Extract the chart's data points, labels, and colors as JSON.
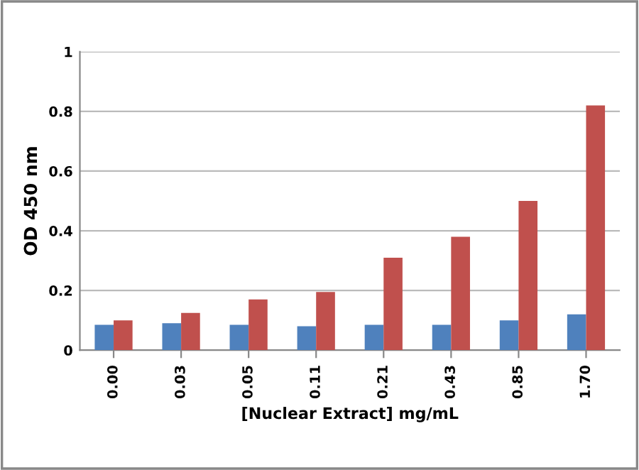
{
  "chart_data": {
    "type": "bar",
    "xlabel": "[Nuclear Extract] mg/mL",
    "ylabel": "OD 450 nm",
    "categories": [
      "0.00",
      "0.03",
      "0.05",
      "0.11",
      "0.21",
      "0.43",
      "0.85",
      "1.70"
    ],
    "series": [
      {
        "color": "#4f81bd",
        "values": [
          0.085,
          0.09,
          0.085,
          0.08,
          0.085,
          0.085,
          0.1,
          0.12
        ]
      },
      {
        "color": "#c0504d",
        "values": [
          0.1,
          0.125,
          0.17,
          0.195,
          0.31,
          0.38,
          0.5,
          0.82
        ]
      }
    ],
    "ylim": [
      0,
      1
    ],
    "yticks": [
      0,
      0.2,
      0.4,
      0.6,
      0.8,
      1
    ],
    "grid": "y",
    "legend": false
  }
}
